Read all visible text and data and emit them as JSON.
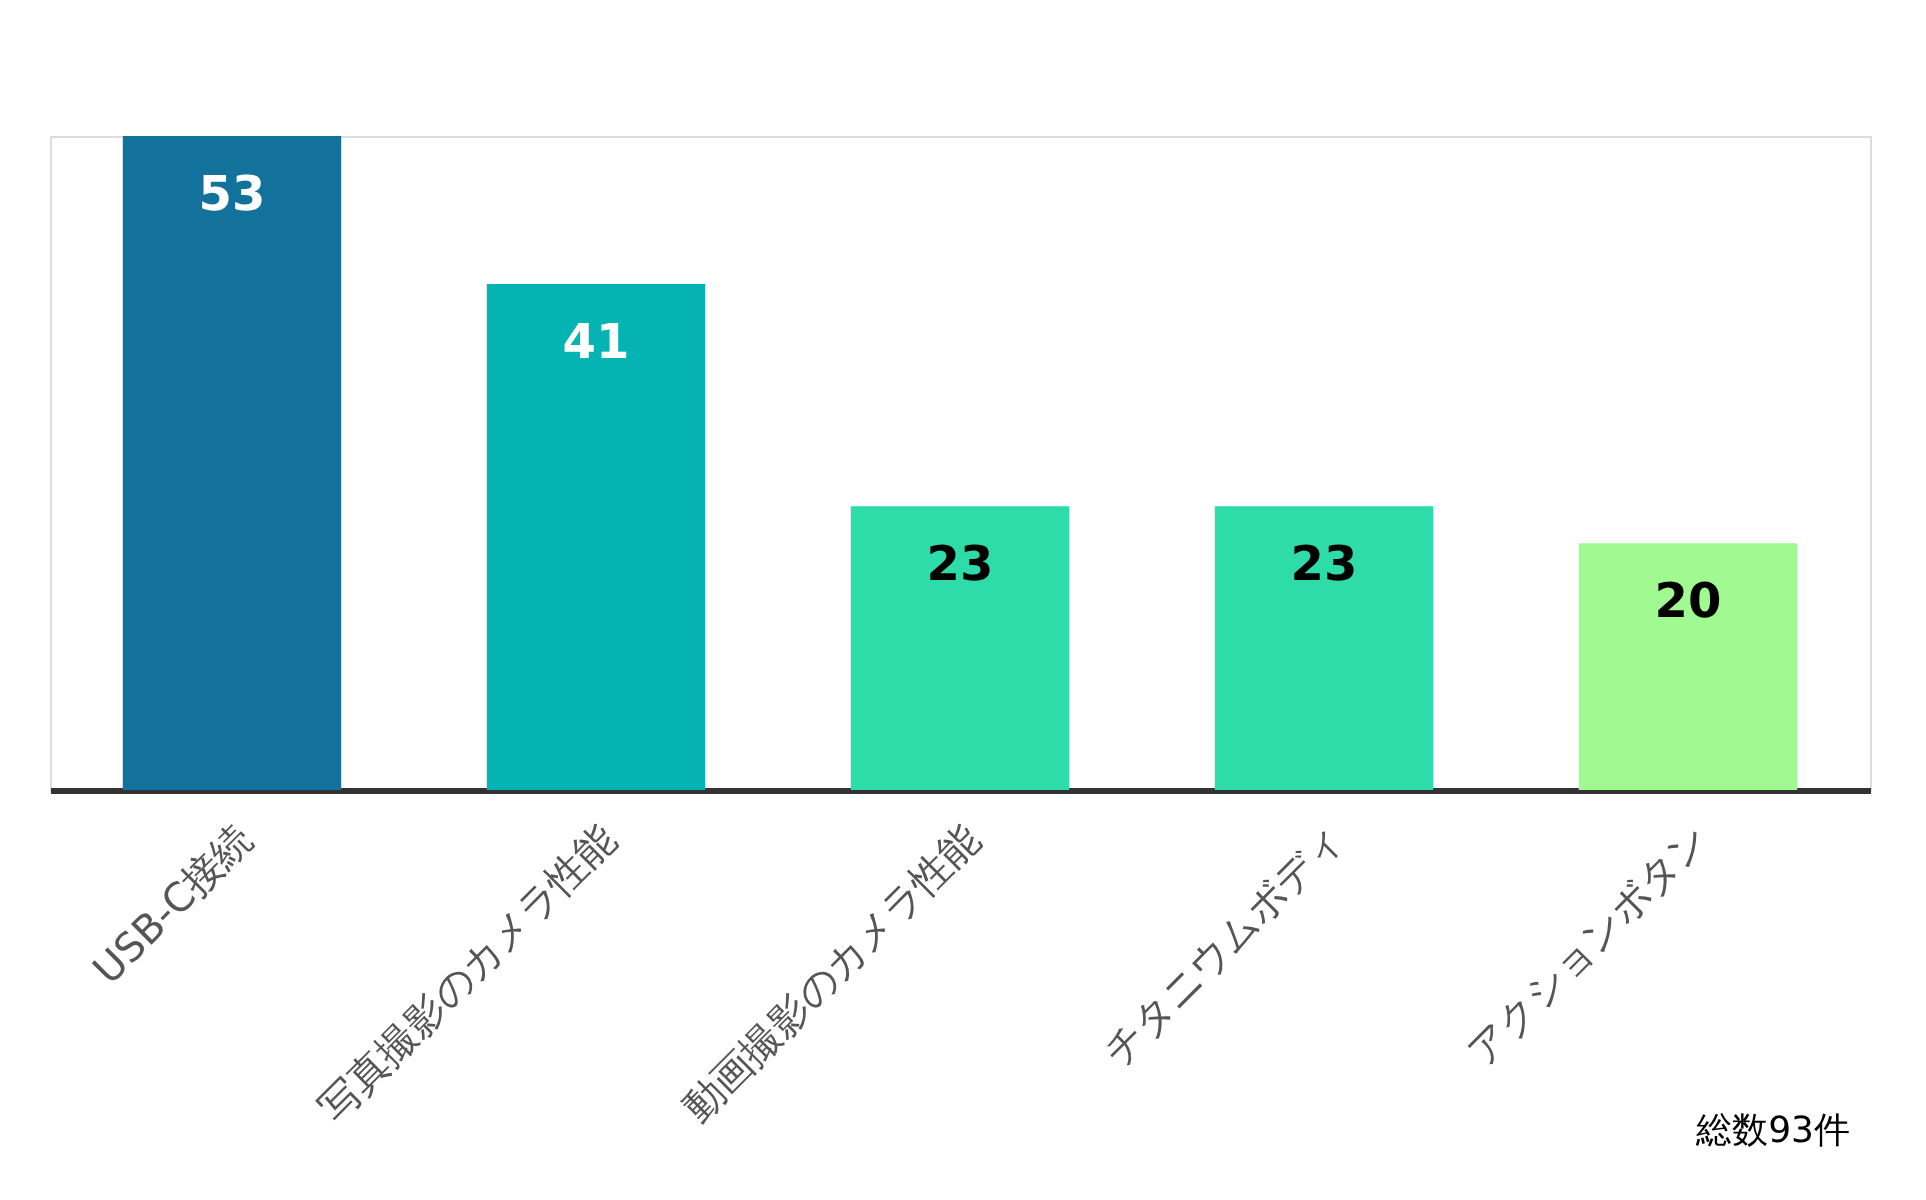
{
  "chart_data": {
    "type": "bar",
    "categories": [
      "USB-C接続",
      "写真撮影のカメラ性能",
      "動画撮影のカメラ性能",
      "チタニウムボディ",
      "アクションボタン"
    ],
    "values": [
      53,
      41,
      23,
      23,
      20
    ],
    "colors": [
      "#12729b",
      "#05b3b3",
      "#2edcaa",
      "#2edcaa",
      "#a0fa91"
    ],
    "data_labels": true,
    "annotations": [
      "総数93件"
    ]
  }
}
